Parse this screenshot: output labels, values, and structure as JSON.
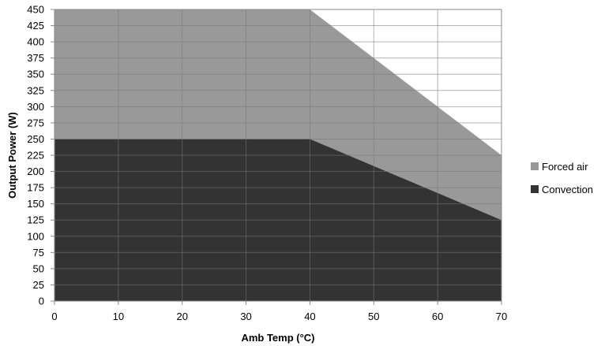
{
  "chart_data": {
    "type": "area",
    "title": "",
    "xlabel": "Amb Temp (°C)",
    "ylabel": "Output Power (W)",
    "xlim": [
      0,
      70
    ],
    "ylim": [
      0,
      450
    ],
    "xticks": [
      0,
      10,
      20,
      30,
      40,
      50,
      60,
      70
    ],
    "yticks": [
      0,
      25,
      50,
      75,
      100,
      125,
      150,
      175,
      200,
      225,
      250,
      275,
      300,
      325,
      350,
      375,
      400,
      425,
      450
    ],
    "grid": true,
    "legend_position": "right",
    "series": [
      {
        "name": "Forced air",
        "color": "#999999",
        "x": [
          0,
          40,
          70
        ],
        "y": [
          450,
          450,
          225
        ]
      },
      {
        "name": "Convection",
        "color": "#333333",
        "x": [
          0,
          40,
          70
        ],
        "y": [
          250,
          250,
          125
        ]
      }
    ]
  }
}
